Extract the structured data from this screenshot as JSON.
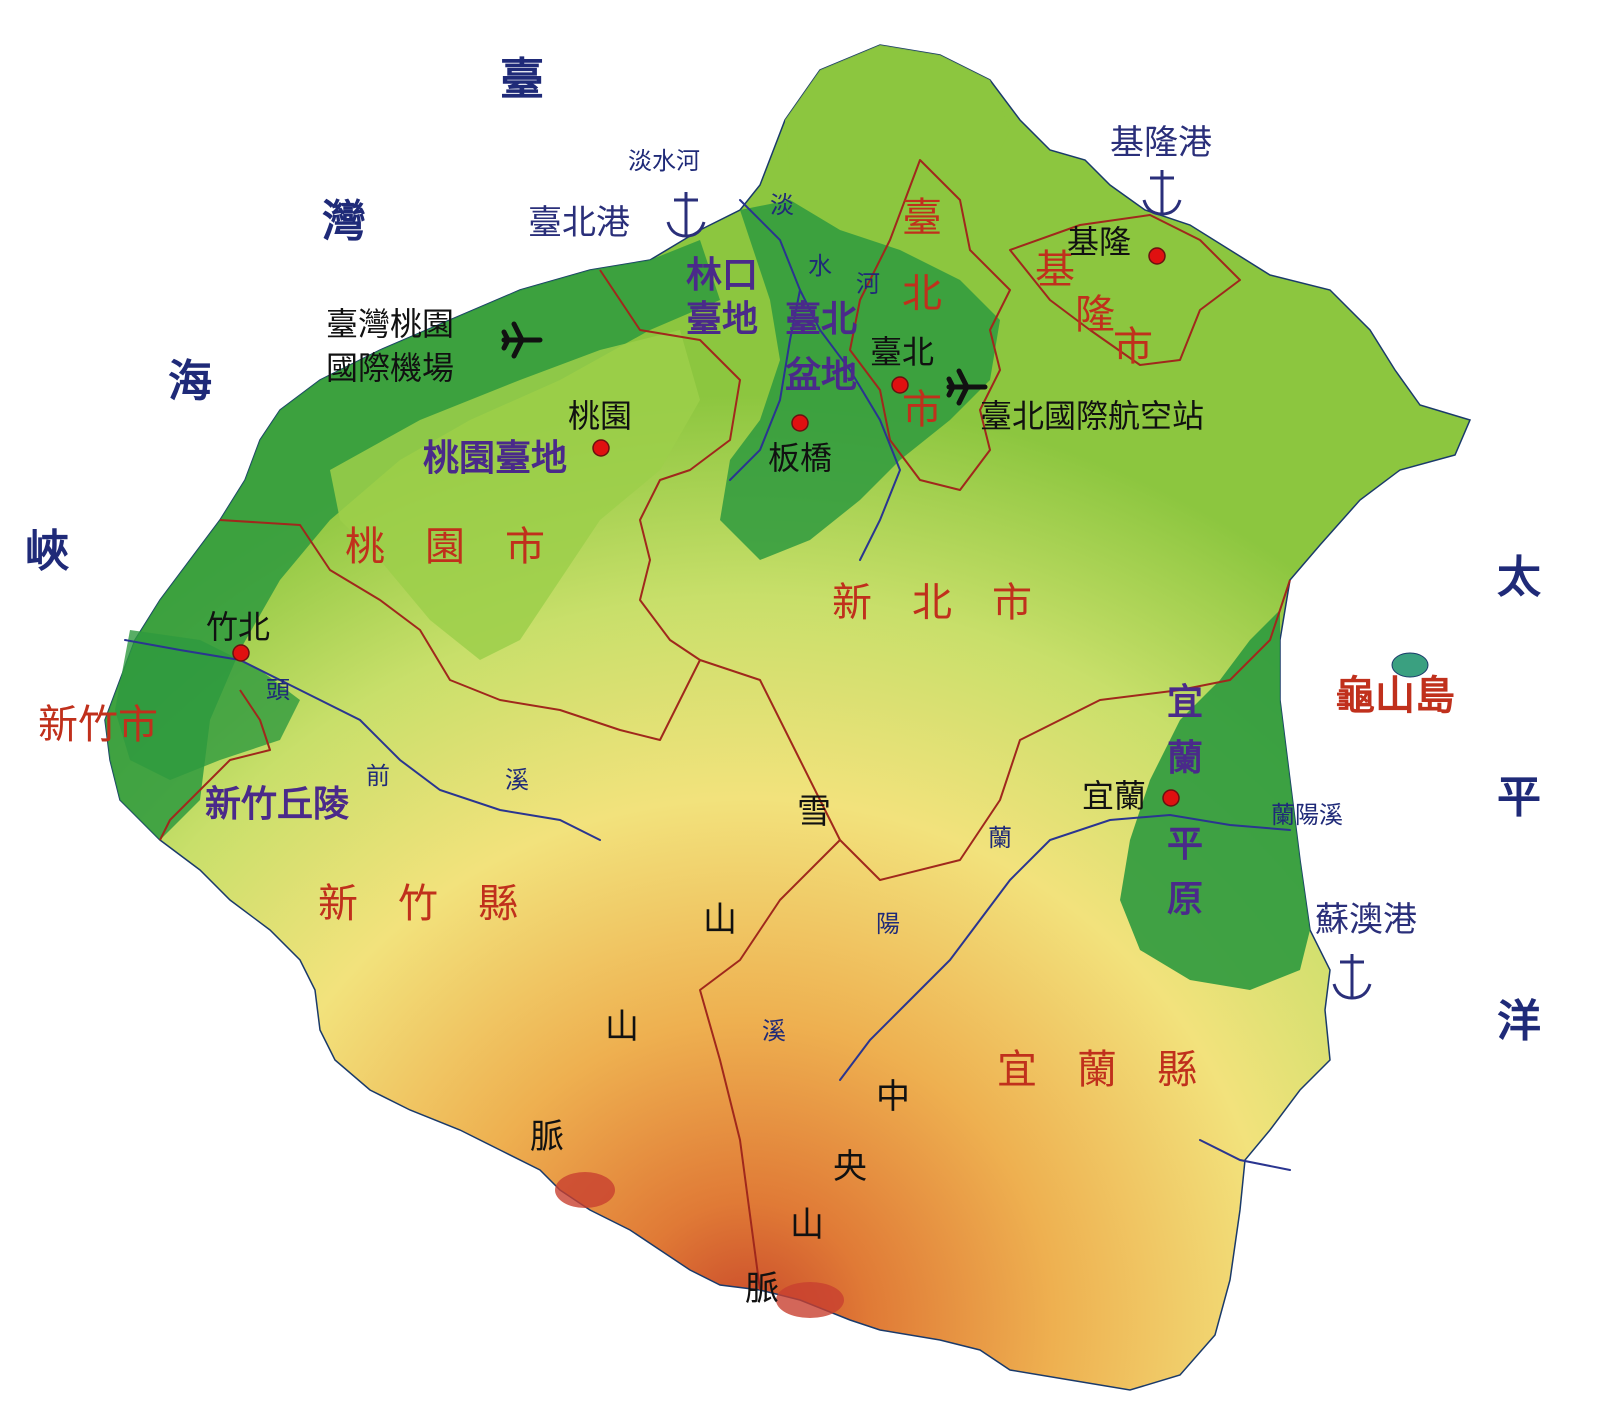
{
  "map_title": "",
  "seas": {
    "taiwan_strait": [
      "臺",
      "灣",
      "海",
      "峽"
    ],
    "pacific": [
      "太",
      "平",
      "洋"
    ]
  },
  "island": {
    "label": "龜山島",
    "color": "#3aa080"
  },
  "admin_regions": {
    "taipei_city": [
      "臺",
      "北",
      "市"
    ],
    "keelung_city": [
      "基",
      "隆",
      "市"
    ],
    "new_taipei_city": "新　北　市",
    "taoyuan_city": "桃　園　市",
    "hsinchu_city": "新竹市",
    "hsinchu_county": "新　竹　縣",
    "yilan_county": "宜　蘭　縣"
  },
  "terrain": {
    "linkou_line1": "林口",
    "linkou_line2": "臺地",
    "taipei_basin_line1": "臺北",
    "taipei_basin_line2": "盆地",
    "taoyuan_tableland": "桃園臺地",
    "hsinchu_hills": "新竹丘陵",
    "yilan_plain": [
      "宜",
      "蘭",
      "平",
      "原"
    ]
  },
  "mountains": {
    "xueshan": [
      "雪",
      "山",
      "山",
      "脈"
    ],
    "central": [
      "中",
      "央",
      "山",
      "脈"
    ]
  },
  "cities": {
    "keelung": "基隆",
    "taipei": "臺北",
    "banqiao": "板橋",
    "taoyuan": "桃園",
    "zhubei": "竹北",
    "yilan": "宜蘭"
  },
  "airports": {
    "taoyuan": "臺灣桃園國際機場",
    "taoyuan_line1": "臺灣桃園",
    "taoyuan_line2": "國際機場",
    "songshan": "臺北國際航空站"
  },
  "ports": {
    "taipei": "臺北港",
    "keelung": "基隆港",
    "suao": "蘇澳港"
  },
  "rivers": {
    "tamsui": "淡水河",
    "tamsui_vertical": [
      "淡",
      "水",
      "河"
    ],
    "touqian": [
      "頭",
      "前",
      "溪"
    ],
    "lanyang": "蘭陽溪",
    "lanyang_vertical": [
      "蘭",
      "陽",
      "溪"
    ]
  },
  "colors": {
    "sea_text": "#1f2a78",
    "admin_text": "#c0301c",
    "terrain_text": "#4a2a8a",
    "city_dot": "#e01010",
    "lowland": "#2e9a3e",
    "plain": "#8cc63f",
    "hills": "#e8e070",
    "mountain": "#e8a040",
    "peak": "#c84030",
    "boundary": "#a0281c",
    "river": "#2a3590"
  }
}
